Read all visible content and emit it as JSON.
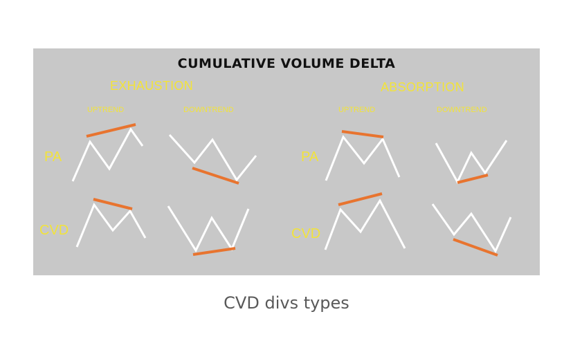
{
  "figure": {
    "title": "CUMULATIVE VOLUME DELTA",
    "groups": [
      {
        "label": "EXHAUSTION",
        "trends": [
          "UPTREND",
          "DOWNTREND"
        ]
      },
      {
        "label": "ABSORPTION",
        "trends": [
          "UPTREND",
          "DOWNTREND"
        ]
      }
    ],
    "row_labels": [
      "PA",
      "CVD",
      "PA",
      "CVD"
    ],
    "colors": {
      "background": "#c8c8c8",
      "label": "#f2e33a",
      "price_line": "#ffffff",
      "divergence_line": "#e8742f"
    }
  },
  "caption": "CVD divs types"
}
